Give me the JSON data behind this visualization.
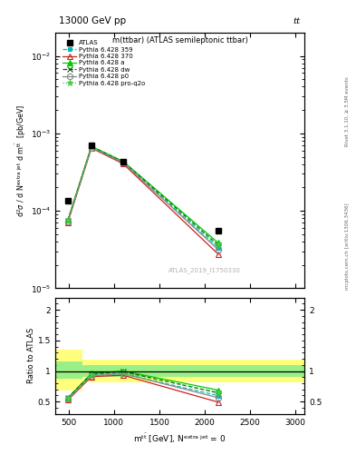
{
  "title_top": "13000 GeV pp",
  "title_right": "tt",
  "plot_title": "m(ttbar) (ATLAS semileptonic ttbar)",
  "watermark": "ATLAS_2019_I1750330",
  "rivet_label": "Rivet 3.1.10, ≥ 3.5M events",
  "arxiv_label": "mcplots.cern.ch [arXiv:1306.3436]",
  "x_data": [
    490,
    750,
    1100,
    2150
  ],
  "series": [
    {
      "label": "ATLAS",
      "color": "#000000",
      "marker": "s",
      "ms": 5,
      "ls": "none",
      "mfc": "#000000",
      "y": [
        0.000135,
        0.00071,
        0.000435,
        5.6e-05
      ]
    },
    {
      "label": "Pythia 6.428 359",
      "color": "#00bbbb",
      "marker": "s",
      "ms": 3.5,
      "ls": "--",
      "mfc": "#00bbbb",
      "y": [
        7.4e-05,
        0.00066,
        0.000415,
        3.35e-05
      ],
      "ratio": [
        0.548,
        0.929,
        0.954,
        0.598
      ]
    },
    {
      "label": "Pythia 6.428 370",
      "color": "#cc2222",
      "marker": "^",
      "ms": 4.5,
      "ls": "-",
      "mfc": "none",
      "y": [
        7.1e-05,
        0.000645,
        0.000405,
        2.75e-05
      ],
      "ratio": [
        0.526,
        0.908,
        0.931,
        0.491
      ]
    },
    {
      "label": "Pythia 6.428 a",
      "color": "#00cc00",
      "marker": "^",
      "ms": 4.5,
      "ls": "-",
      "mfc": "#00cc00",
      "y": [
        7.6e-05,
        0.00068,
        0.000435,
        3.85e-05
      ],
      "ratio": [
        0.563,
        0.958,
        1.0,
        0.688
      ]
    },
    {
      "label": "Pythia 6.428 dw",
      "color": "#005500",
      "marker": "x",
      "ms": 4.5,
      "ls": "--",
      "mfc": "#005500",
      "y": [
        7.55e-05,
        0.000675,
        0.00043,
        3.6e-05
      ],
      "ratio": [
        0.559,
        0.951,
        0.989,
        0.643
      ]
    },
    {
      "label": "Pythia 6.428 p0",
      "color": "#888888",
      "marker": "o",
      "ms": 4.5,
      "ls": "-",
      "mfc": "none",
      "y": [
        7.3e-05,
        0.000655,
        0.000418,
        3.15e-05
      ],
      "ratio": [
        0.541,
        0.922,
        0.961,
        0.563
      ]
    },
    {
      "label": "Pythia 6.428 pro-q2o",
      "color": "#44cc44",
      "marker": "*",
      "ms": 5,
      "ls": ":",
      "mfc": "#44cc44",
      "y": [
        7.45e-05,
        0.00067,
        0.000425,
        3.65e-05
      ],
      "ratio": [
        0.552,
        0.944,
        0.977,
        0.652
      ]
    }
  ],
  "ylim_main": [
    1e-05,
    0.02
  ],
  "ylim_ratio": [
    0.3,
    2.2
  ],
  "xlim": [
    350,
    3100
  ],
  "green_band": [
    0.9,
    1.1
  ],
  "yellow_band": [
    0.82,
    1.18
  ],
  "green_band_first": [
    0.87,
    1.15
  ],
  "yellow_band_first": [
    0.68,
    1.35
  ]
}
